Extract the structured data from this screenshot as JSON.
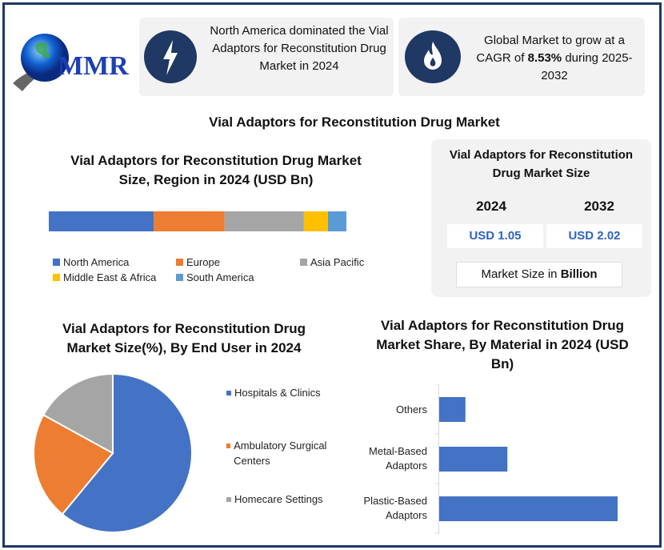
{
  "logo": {
    "text": "MMR"
  },
  "header": {
    "card1": {
      "icon": "lightning-icon",
      "text": "North America dominated the Vial Adaptors for Reconstitution Drug Market in 2024"
    },
    "card2": {
      "icon": "flame-icon",
      "text_before": "Global Market to grow at a CAGR of ",
      "cagr": "8.53%",
      "text_after": " during 2025-2032"
    }
  },
  "main_title": "Vial Adaptors for Reconstitution Drug Market",
  "market_size": {
    "title": "Vial Adaptors for Reconstitution Drug Market Size",
    "years": [
      {
        "year": "2024",
        "value": "USD 1.05"
      },
      {
        "year": "2032",
        "value": "USD 2.02"
      }
    ],
    "unit_prefix": "Market Size in ",
    "unit": "Billion"
  },
  "colors": {
    "north_america": "#4472c4",
    "europe": "#ed7d31",
    "asia_pacific": "#a5a5a5",
    "mea": "#ffc000",
    "south_america": "#5b9bd5",
    "navy": "#1f3864"
  },
  "chart_data": [
    {
      "type": "bar",
      "orientation": "horizontal-stacked",
      "title": "Vial Adaptors for Reconstitution Drug Market Size, Region in 2024 (USD Bn)",
      "series": [
        {
          "name": "North America",
          "values": [
            0.37
          ]
        },
        {
          "name": "Europe",
          "values": [
            0.25
          ]
        },
        {
          "name": "Asia Pacific",
          "values": [
            0.28
          ]
        },
        {
          "name": "Middle East & Africa",
          "values": [
            0.085
          ]
        },
        {
          "name": "South America",
          "values": [
            0.065
          ]
        }
      ],
      "legend": "bottom"
    },
    {
      "type": "pie",
      "title": "Vial Adaptors for Reconstitution Drug Market Size(%), By End User in 2024",
      "categories": [
        "Hospitals & Clinics",
        "Ambulatory Surgical Centers",
        "Homecare Settings"
      ],
      "values": [
        61,
        22,
        17
      ],
      "legend": "right"
    },
    {
      "type": "bar",
      "orientation": "horizontal",
      "title": "Vial Adaptors for Reconstitution Drug Market Share, By Material in 2024 (USD Bn)",
      "categories": [
        "Others",
        "Metal-Based Adaptors",
        "Plastic-Based Adaptors"
      ],
      "values": [
        0.1,
        0.26,
        0.68
      ]
    }
  ]
}
